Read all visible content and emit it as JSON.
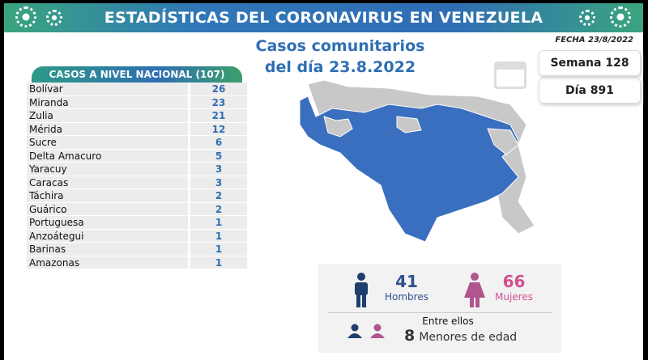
{
  "header": {
    "title": "ESTADÍSTICAS DEL CORONAVIRUS EN VENEZUELA"
  },
  "subtitle": {
    "line1": "Casos comunitarios",
    "line2": "del día 23.8.2022"
  },
  "fecha": "FECHA 23/8/2022",
  "semana": "Semana 128",
  "dia": "Día 891",
  "table": {
    "title": "CASOS A NIVEL NACIONAL  (107)",
    "rows": [
      {
        "name": "Bolívar",
        "value": "26"
      },
      {
        "name": "Miranda",
        "value": "23"
      },
      {
        "name": "Zulia",
        "value": "21"
      },
      {
        "name": "Mérida",
        "value": "12"
      },
      {
        "name": "Sucre",
        "value": "6"
      },
      {
        "name": "Delta Amacuro",
        "value": "5"
      },
      {
        "name": "Yaracuy",
        "value": "3"
      },
      {
        "name": "Caracas",
        "value": "3"
      },
      {
        "name": "Táchira",
        "value": "2"
      },
      {
        "name": "Guárico",
        "value": "2"
      },
      {
        "name": "Portuguesa",
        "value": "1"
      },
      {
        "name": "Anzoátegui",
        "value": "1"
      },
      {
        "name": "Barinas",
        "value": "1"
      },
      {
        "name": "Amazonas",
        "value": "1"
      }
    ]
  },
  "stats": {
    "men_count": "41",
    "men_label": "Hombres",
    "women_count": "66",
    "women_label": "Mujeres",
    "among": "Entre ellos",
    "minors_count": "8",
    "minors_label": "Menores de edad"
  },
  "colors": {
    "accent": "#2f6fb3",
    "men": "#1f3f6e",
    "women": "#d2508f",
    "map_cases": "#3a6fbf",
    "map_none": "#c8c8c8"
  }
}
